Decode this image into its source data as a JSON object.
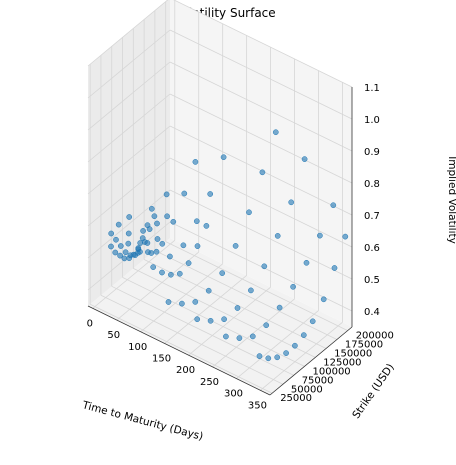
{
  "chart_data": {
    "type": "scatter",
    "title": "Volatility Surface",
    "xlabel": "Time to Maturity (Days)",
    "ylabel": "Strike (USD)",
    "zlabel": "Implied Volatility",
    "xlim": [
      -10,
      370
    ],
    "ylim": [
      20000,
      210000
    ],
    "zlim": [
      0.35,
      1.1
    ],
    "xticks": [
      "0",
      "50",
      "100",
      "150",
      "200",
      "250",
      "300",
      "350"
    ],
    "yticks": [
      "25000",
      "50000",
      "75000",
      "100000",
      "125000",
      "150000",
      "175000",
      "200000"
    ],
    "zticks": [
      "0.4",
      "0.5",
      "0.6",
      "0.7",
      "0.8",
      "0.9",
      "1.0",
      "1.1"
    ],
    "grid": true,
    "marker_color": "#1f77b4",
    "points": [
      {
        "x": 2,
        "y": 60000,
        "z": 0.5
      },
      {
        "x": 2,
        "y": 70000,
        "z": 0.47
      },
      {
        "x": 3,
        "y": 80000,
        "z": 0.45
      },
      {
        "x": 3,
        "y": 90000,
        "z": 0.43
      },
      {
        "x": 4,
        "y": 100000,
        "z": 0.42
      },
      {
        "x": 4,
        "y": 110000,
        "z": 0.42
      },
      {
        "x": 5,
        "y": 120000,
        "z": 0.43
      },
      {
        "x": 5,
        "y": 130000,
        "z": 0.45
      },
      {
        "x": 6,
        "y": 140000,
        "z": 0.48
      },
      {
        "x": 6,
        "y": 150000,
        "z": 0.52
      },
      {
        "x": 7,
        "y": 55000,
        "z": 0.55
      },
      {
        "x": 8,
        "y": 65000,
        "z": 0.52
      },
      {
        "x": 9,
        "y": 75000,
        "z": 0.49
      },
      {
        "x": 10,
        "y": 85000,
        "z": 0.46
      },
      {
        "x": 11,
        "y": 95000,
        "z": 0.44
      },
      {
        "x": 12,
        "y": 105000,
        "z": 0.43
      },
      {
        "x": 13,
        "y": 115000,
        "z": 0.43
      },
      {
        "x": 14,
        "y": 125000,
        "z": 0.45
      },
      {
        "x": 15,
        "y": 135000,
        "z": 0.48
      },
      {
        "x": 16,
        "y": 145000,
        "z": 0.51
      },
      {
        "x": 18,
        "y": 60000,
        "z": 0.58
      },
      {
        "x": 20,
        "y": 80000,
        "z": 0.5
      },
      {
        "x": 22,
        "y": 100000,
        "z": 0.45
      },
      {
        "x": 24,
        "y": 120000,
        "z": 0.46
      },
      {
        "x": 26,
        "y": 140000,
        "z": 0.5
      },
      {
        "x": 28,
        "y": 160000,
        "z": 0.57
      },
      {
        "x": 30,
        "y": 70000,
        "z": 0.55
      },
      {
        "x": 32,
        "y": 90000,
        "z": 0.48
      },
      {
        "x": 34,
        "y": 110000,
        "z": 0.45
      },
      {
        "x": 36,
        "y": 130000,
        "z": 0.47
      },
      {
        "x": 38,
        "y": 150000,
        "z": 0.52
      },
      {
        "x": 40,
        "y": 60000,
        "z": 0.62
      },
      {
        "x": 45,
        "y": 80000,
        "z": 0.52
      },
      {
        "x": 50,
        "y": 100000,
        "z": 0.47
      },
      {
        "x": 55,
        "y": 120000,
        "z": 0.48
      },
      {
        "x": 60,
        "y": 140000,
        "z": 0.53
      },
      {
        "x": 65,
        "y": 160000,
        "z": 0.6
      },
      {
        "x": 70,
        "y": 180000,
        "z": 0.68
      },
      {
        "x": 60,
        "y": 70000,
        "z": 0.58
      },
      {
        "x": 70,
        "y": 90000,
        "z": 0.5
      },
      {
        "x": 80,
        "y": 110000,
        "z": 0.47
      },
      {
        "x": 90,
        "y": 130000,
        "z": 0.49
      },
      {
        "x": 100,
        "y": 150000,
        "z": 0.55
      },
      {
        "x": 110,
        "y": 170000,
        "z": 0.62
      },
      {
        "x": 120,
        "y": 190000,
        "z": 0.72
      },
      {
        "x": 90,
        "y": 60000,
        "z": 0.5
      },
      {
        "x": 95,
        "y": 75000,
        "z": 0.47
      },
      {
        "x": 100,
        "y": 90000,
        "z": 0.45
      },
      {
        "x": 105,
        "y": 105000,
        "z": 0.44
      },
      {
        "x": 110,
        "y": 120000,
        "z": 0.46
      },
      {
        "x": 115,
        "y": 135000,
        "z": 0.5
      },
      {
        "x": 120,
        "y": 150000,
        "z": 0.55
      },
      {
        "x": 140,
        "y": 40000,
        "z": 0.45
      },
      {
        "x": 150,
        "y": 60000,
        "z": 0.43
      },
      {
        "x": 160,
        "y": 80000,
        "z": 0.42
      },
      {
        "x": 170,
        "y": 100000,
        "z": 0.44
      },
      {
        "x": 180,
        "y": 120000,
        "z": 0.48
      },
      {
        "x": 190,
        "y": 140000,
        "z": 0.55
      },
      {
        "x": 200,
        "y": 160000,
        "z": 0.64
      },
      {
        "x": 210,
        "y": 180000,
        "z": 0.75
      },
      {
        "x": 220,
        "y": 200000,
        "z": 0.86
      },
      {
        "x": 200,
        "y": 40000,
        "z": 0.44
      },
      {
        "x": 210,
        "y": 60000,
        "z": 0.42
      },
      {
        "x": 220,
        "y": 80000,
        "z": 0.41
      },
      {
        "x": 230,
        "y": 100000,
        "z": 0.43
      },
      {
        "x": 240,
        "y": 120000,
        "z": 0.47
      },
      {
        "x": 250,
        "y": 140000,
        "z": 0.53
      },
      {
        "x": 260,
        "y": 160000,
        "z": 0.61
      },
      {
        "x": 270,
        "y": 180000,
        "z": 0.7
      },
      {
        "x": 280,
        "y": 200000,
        "z": 0.82
      },
      {
        "x": 260,
        "y": 40000,
        "z": 0.43
      },
      {
        "x": 270,
        "y": 60000,
        "z": 0.41
      },
      {
        "x": 280,
        "y": 80000,
        "z": 0.4
      },
      {
        "x": 290,
        "y": 100000,
        "z": 0.42
      },
      {
        "x": 300,
        "y": 120000,
        "z": 0.46
      },
      {
        "x": 310,
        "y": 140000,
        "z": 0.51
      },
      {
        "x": 320,
        "y": 160000,
        "z": 0.57
      },
      {
        "x": 330,
        "y": 180000,
        "z": 0.64
      },
      {
        "x": 340,
        "y": 200000,
        "z": 0.72
      },
      {
        "x": 330,
        "y": 40000,
        "z": 0.42
      },
      {
        "x": 335,
        "y": 55000,
        "z": 0.4
      },
      {
        "x": 340,
        "y": 70000,
        "z": 0.39
      },
      {
        "x": 345,
        "y": 85000,
        "z": 0.39
      },
      {
        "x": 350,
        "y": 100000,
        "z": 0.4
      },
      {
        "x": 355,
        "y": 115000,
        "z": 0.42
      },
      {
        "x": 360,
        "y": 130000,
        "z": 0.45
      },
      {
        "x": 365,
        "y": 150000,
        "z": 0.5
      },
      {
        "x": 365,
        "y": 175000,
        "z": 0.57
      },
      {
        "x": 365,
        "y": 200000,
        "z": 0.64
      }
    ]
  }
}
